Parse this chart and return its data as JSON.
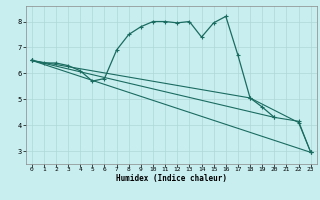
{
  "bg_color": "#c8eef0",
  "line_color": "#1a6b60",
  "xlabel": "Humidex (Indice chaleur)",
  "xlim": [
    -0.5,
    23.5
  ],
  "ylim": [
    2.5,
    8.6
  ],
  "yticks": [
    3,
    4,
    5,
    6,
    7,
    8
  ],
  "xticks": [
    0,
    1,
    2,
    3,
    4,
    5,
    6,
    7,
    8,
    9,
    10,
    11,
    12,
    13,
    14,
    15,
    16,
    17,
    18,
    19,
    20,
    21,
    22,
    23
  ],
  "series": [
    {
      "x": [
        0,
        1,
        2,
        3,
        4,
        5,
        6,
        7,
        8,
        9,
        10,
        11,
        12,
        13,
        14,
        15,
        16,
        17,
        18,
        19,
        20
      ],
      "y": [
        6.5,
        6.4,
        6.4,
        6.3,
        6.1,
        5.7,
        5.8,
        6.9,
        7.5,
        7.8,
        8.0,
        8.0,
        7.95,
        8.0,
        7.4,
        7.95,
        8.2,
        6.7,
        5.05,
        4.7,
        4.3
      ]
    },
    {
      "comment": "line 1: from 0,6.5 to 23,2.95",
      "x": [
        0,
        23
      ],
      "y": [
        6.5,
        2.95
      ]
    },
    {
      "comment": "line 2: from 0,6.5 to 20,4.3 to 22,4.15 to 23,2.95",
      "x": [
        0,
        20,
        22,
        23
      ],
      "y": [
        6.5,
        4.3,
        4.15,
        2.95
      ]
    },
    {
      "comment": "line 3: from 0,6.5 to 18,5.05 to 22,4.1 to 23,2.95",
      "x": [
        0,
        18,
        22,
        23
      ],
      "y": [
        6.5,
        5.05,
        4.1,
        2.95
      ]
    }
  ]
}
